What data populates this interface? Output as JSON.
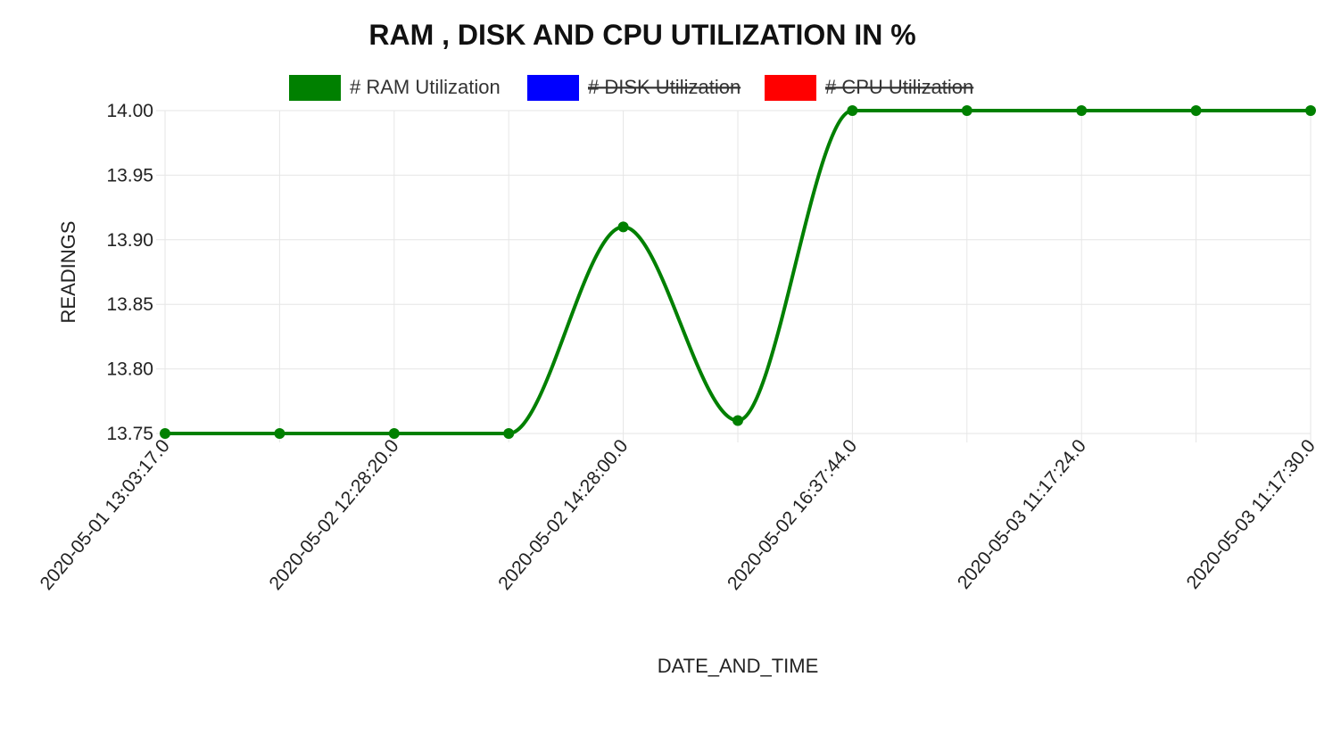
{
  "chart_data": {
    "type": "line",
    "title": "RAM , DISK AND CPU UTILIZATION IN %",
    "xlabel": "DATE_AND_TIME",
    "ylabel": "READINGS",
    "ylim": [
      13.75,
      14.0
    ],
    "y_ticks": [
      "14.00",
      "13.95",
      "13.90",
      "13.85",
      "13.80",
      "13.75"
    ],
    "x_tick_labels": [
      "2020-05-01 13:03:17.0",
      "2020-05-02 12:28:20.0",
      "2020-05-02 14:28:00.0",
      "2020-05-02 16:37:44.0",
      "2020-05-03 11:17:24.0",
      "2020-05-03 11:17:30.0"
    ],
    "grid": true,
    "legend_position": "top",
    "series": [
      {
        "name": "# RAM Utilization",
        "color": "#008000",
        "hidden": false,
        "values": [
          13.75,
          13.75,
          13.75,
          13.75,
          13.91,
          13.76,
          14.0,
          14.0,
          14.0,
          14.0,
          14.0
        ]
      },
      {
        "name": "# DISK Utilization",
        "color": "#0000ff",
        "hidden": true,
        "values": []
      },
      {
        "name": "# CPU Utilization",
        "color": "#ff0000",
        "hidden": true,
        "values": []
      }
    ]
  }
}
